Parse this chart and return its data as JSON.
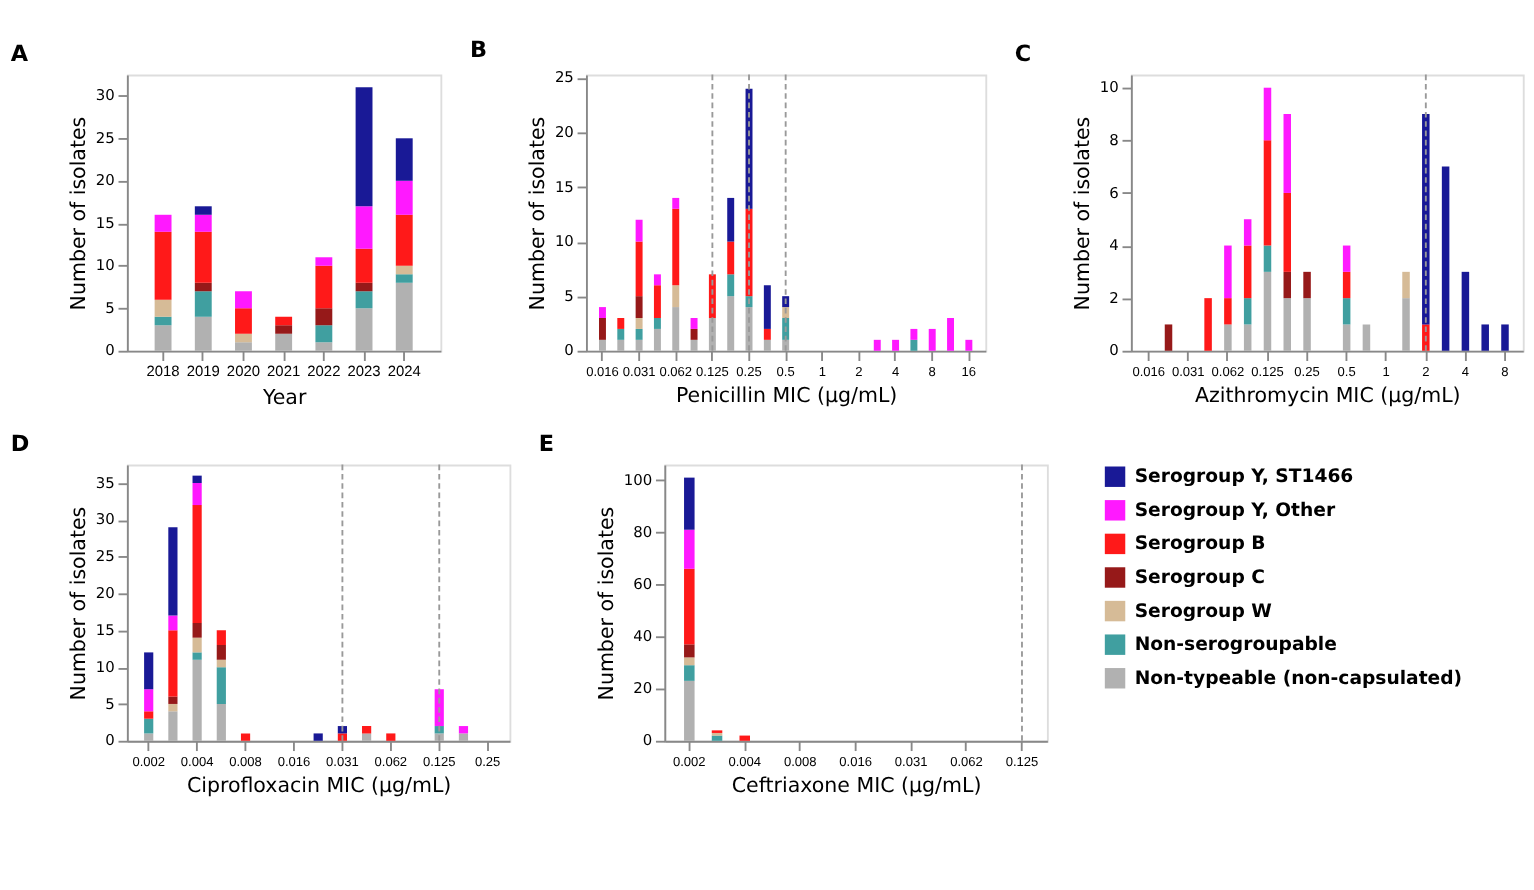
{
  "chart_data": [
    {
      "type": "bar",
      "title": "A",
      "xlabel": "Year",
      "ylabel": "Number of isolates",
      "stacked": true,
      "categories": [
        "2018",
        "2019",
        "2020",
        "2021",
        "2022",
        "2023",
        "2024"
      ],
      "ylim": [
        0,
        32.5
      ],
      "yticks": [
        0,
        5,
        10,
        15,
        20,
        25,
        30
      ],
      "series": [
        {
          "color": "#a9a9a9",
          "values": [
            3,
            4,
            1,
            2,
            1,
            5,
            8
          ]
        },
        {
          "color": "#2b9596",
          "values": [
            1,
            3,
            null,
            null,
            2,
            2,
            1
          ]
        },
        {
          "color": "#d2b48c",
          "values": [
            2,
            null,
            1,
            null,
            null,
            null,
            1
          ]
        },
        {
          "color": "#8b0000",
          "values": [
            null,
            1,
            null,
            1,
            2,
            1,
            null
          ]
        },
        {
          "color": "#ff0000",
          "values": [
            8,
            6,
            3,
            1,
            5,
            4,
            6
          ]
        },
        {
          "color": "#ff00ff",
          "values": [
            2,
            2,
            2,
            null,
            1,
            5,
            4
          ]
        },
        {
          "color": "#00008b",
          "values": [
            null,
            1,
            null,
            null,
            null,
            14,
            5
          ]
        }
      ]
    },
    {
      "type": "bar",
      "title": "B",
      "xlabel": "Penicillin MIC (µg/mL)",
      "ylabel": "Number of isolates",
      "stacked": true,
      "categories": [
        "0.016",
        null,
        "0.031",
        null,
        "0.062",
        null,
        "0.125",
        null,
        "0.25",
        null,
        "0.5",
        null,
        "1",
        null,
        "2",
        null,
        "4",
        null,
        "8",
        null,
        "16"
      ],
      "ylim": [
        0,
        25.3
      ],
      "yticks": [
        0,
        5,
        10,
        15,
        20,
        25
      ],
      "ref_lines": [
        {
          "axis": "x",
          "value": "0.125",
          "color": "#999999",
          "line_style": "dashed"
        },
        {
          "axis": "x",
          "value": "0.25",
          "color": "#999999",
          "line_style": "dashed"
        },
        {
          "axis": "x",
          "value": "0.5",
          "color": "#999999",
          "line_style": "dashed"
        }
      ],
      "series": [
        {
          "color": "#a9a9a9",
          "values": [
            1,
            1,
            1,
            2,
            4,
            1,
            3,
            5,
            4,
            1,
            1,
            null,
            null,
            null,
            null,
            null,
            null,
            null,
            null,
            null,
            null
          ]
        },
        {
          "color": "#2b9596",
          "values": [
            null,
            1,
            1,
            1,
            null,
            null,
            null,
            2,
            1,
            null,
            2,
            null,
            null,
            null,
            null,
            null,
            null,
            1,
            null,
            null,
            null
          ]
        },
        {
          "color": "#d2b48c",
          "values": [
            null,
            null,
            1,
            null,
            2,
            null,
            null,
            null,
            null,
            null,
            1,
            null,
            null,
            null,
            null,
            null,
            null,
            null,
            null,
            null,
            null
          ]
        },
        {
          "color": "#8b0000",
          "values": [
            2,
            null,
            2,
            null,
            null,
            1,
            null,
            null,
            null,
            null,
            null,
            null,
            null,
            null,
            null,
            null,
            null,
            null,
            null,
            null,
            null
          ]
        },
        {
          "color": "#ff0000",
          "values": [
            null,
            1,
            5,
            3,
            7,
            null,
            4,
            3,
            8,
            1,
            null,
            null,
            null,
            null,
            null,
            null,
            null,
            null,
            null,
            null,
            null
          ]
        },
        {
          "color": "#ff00ff",
          "values": [
            1,
            null,
            2,
            1,
            1,
            1,
            null,
            null,
            null,
            null,
            null,
            null,
            null,
            null,
            null,
            1,
            1,
            1,
            2,
            3,
            1
          ]
        },
        {
          "color": "#00008b",
          "values": [
            null,
            null,
            null,
            null,
            null,
            null,
            null,
            4,
            11,
            4,
            1,
            null,
            null,
            null,
            null,
            null,
            null,
            null,
            null,
            null,
            null
          ]
        }
      ]
    },
    {
      "type": "bar",
      "title": "C",
      "xlabel": "Azithromycin MIC (µg/mL)",
      "ylabel": "Number of isolates",
      "stacked": true,
      "categories": [
        "0.016",
        null,
        "0.031",
        null,
        "0.062",
        null,
        "0.125",
        null,
        "0.25",
        null,
        "0.5",
        null,
        "1",
        null,
        "2",
        null,
        "4",
        null,
        "8"
      ],
      "ylim": [
        0,
        10.5
      ],
      "yticks": [
        0,
        2,
        4,
        6,
        8,
        10
      ],
      "ref_lines": [
        {
          "axis": "x",
          "value": "2",
          "color": "#999999",
          "line_style": "dashed"
        }
      ],
      "series": [
        {
          "color": "#a9a9a9",
          "values": [
            null,
            null,
            null,
            null,
            1,
            1,
            3,
            2,
            2,
            null,
            1,
            1,
            null,
            2,
            null,
            null,
            null,
            null,
            null
          ]
        },
        {
          "color": "#2b9596",
          "values": [
            null,
            null,
            null,
            null,
            null,
            1,
            1,
            null,
            null,
            null,
            1,
            null,
            null,
            null,
            null,
            null,
            null,
            null,
            null
          ]
        },
        {
          "color": "#d2b48c",
          "values": [
            null,
            null,
            null,
            null,
            null,
            null,
            null,
            null,
            null,
            null,
            null,
            null,
            null,
            1,
            null,
            null,
            null,
            null,
            null
          ]
        },
        {
          "color": "#8b0000",
          "values": [
            null,
            1,
            null,
            null,
            null,
            null,
            null,
            1,
            1,
            null,
            null,
            null,
            null,
            null,
            null,
            null,
            null,
            null,
            null
          ]
        },
        {
          "color": "#ff0000",
          "values": [
            null,
            null,
            null,
            2,
            1,
            2,
            4,
            3,
            null,
            null,
            1,
            null,
            null,
            null,
            1,
            null,
            null,
            null,
            null
          ]
        },
        {
          "color": "#ff00ff",
          "values": [
            null,
            null,
            null,
            null,
            2,
            1,
            2,
            3,
            null,
            null,
            1,
            null,
            null,
            null,
            null,
            null,
            null,
            null,
            null
          ]
        },
        {
          "color": "#00008b",
          "values": [
            null,
            null,
            null,
            null,
            null,
            null,
            null,
            null,
            null,
            null,
            null,
            null,
            null,
            null,
            8,
            7,
            3,
            1,
            1
          ]
        }
      ]
    },
    {
      "type": "bar",
      "title": "D",
      "xlabel": "Ciprofloxacin MIC (µg/mL)",
      "ylabel": "Number of isolates",
      "stacked": true,
      "categories": [
        "0.002",
        null,
        "0.004",
        null,
        "0.008",
        null,
        "0.016",
        null,
        "0.031",
        null,
        "0.062",
        null,
        "0.125",
        null,
        "0.25"
      ],
      "ylim": [
        0,
        37.5
      ],
      "yticks": [
        0,
        5,
        10,
        15,
        20,
        25,
        30,
        35
      ],
      "ref_lines": [
        {
          "axis": "x",
          "value": "0.031",
          "color": "#999999",
          "line_style": "dashed"
        },
        {
          "axis": "x",
          "value": "0.125",
          "color": "#999999",
          "line_style": "dashed"
        }
      ],
      "series": [
        {
          "color": "#a9a9a9",
          "values": [
            1,
            4,
            11,
            5,
            null,
            null,
            null,
            null,
            null,
            1,
            null,
            null,
            1,
            1,
            null
          ]
        },
        {
          "color": "#2b9596",
          "values": [
            2,
            null,
            1,
            5,
            null,
            null,
            null,
            null,
            null,
            null,
            null,
            null,
            1,
            null,
            null
          ]
        },
        {
          "color": "#d2b48c",
          "values": [
            null,
            1,
            2,
            1,
            null,
            null,
            null,
            null,
            null,
            null,
            null,
            null,
            null,
            null,
            null
          ]
        },
        {
          "color": "#8b0000",
          "values": [
            null,
            1,
            2,
            2,
            null,
            null,
            null,
            null,
            null,
            null,
            null,
            null,
            null,
            null,
            null
          ]
        },
        {
          "color": "#ff0000",
          "values": [
            1,
            9,
            16,
            2,
            1,
            null,
            null,
            null,
            1,
            1,
            1,
            null,
            null,
            null,
            null
          ]
        },
        {
          "color": "#ff00ff",
          "values": [
            3,
            2,
            3,
            null,
            null,
            null,
            null,
            null,
            null,
            null,
            null,
            null,
            5,
            1,
            null
          ]
        },
        {
          "color": "#00008b",
          "values": [
            5,
            12,
            1,
            null,
            null,
            null,
            null,
            1,
            1,
            null,
            null,
            null,
            null,
            null,
            null
          ]
        }
      ]
    },
    {
      "type": "bar",
      "title": "E",
      "xlabel": "Ceftriaxone MIC (µg/mL)",
      "ylabel": "Number of isolates",
      "stacked": true,
      "legend": "right",
      "categories": [
        "0.002",
        null,
        "0.004",
        null,
        "0.008",
        null,
        "0.016",
        null,
        "0.031",
        null,
        "0.062",
        null,
        "0.125"
      ],
      "ylim": [
        0,
        106
      ],
      "yticks": [
        0,
        20,
        40,
        60,
        80,
        100
      ],
      "ref_lines": [
        {
          "axis": "x",
          "value": "0.125",
          "color": "#999999",
          "line_style": "dashed"
        }
      ],
      "series": [
        {
          "name": "Non-typeable (non-capsulated)",
          "color": "#a9a9a9",
          "values": [
            23,
            null,
            null,
            null,
            null,
            null,
            null,
            null,
            null,
            null,
            null,
            null,
            null
          ]
        },
        {
          "name": "Non-serogroupable",
          "color": "#2b9596",
          "values": [
            6,
            2,
            null,
            null,
            null,
            null,
            null,
            null,
            null,
            null,
            null,
            null,
            null
          ]
        },
        {
          "name": "Serogroup W",
          "color": "#d2b48c",
          "values": [
            3,
            1,
            null,
            null,
            null,
            null,
            null,
            null,
            null,
            null,
            null,
            null,
            null
          ]
        },
        {
          "name": "Serogroup C",
          "color": "#8b0000",
          "values": [
            5,
            null,
            null,
            null,
            null,
            null,
            null,
            null,
            null,
            null,
            null,
            null,
            null
          ]
        },
        {
          "name": "Serogroup B",
          "color": "#ff0000",
          "values": [
            29,
            1,
            2,
            null,
            null,
            null,
            null,
            null,
            null,
            null,
            null,
            null,
            null
          ]
        },
        {
          "name": "Serogroup Y, Other",
          "color": "#ff00ff",
          "values": [
            15,
            null,
            null,
            null,
            null,
            null,
            null,
            null,
            null,
            null,
            null,
            null,
            null
          ]
        },
        {
          "name": "Serogroup Y, ST1466",
          "color": "#00008b",
          "values": [
            20,
            null,
            null,
            null,
            null,
            null,
            null,
            null,
            null,
            null,
            null,
            null,
            null
          ]
        }
      ]
    }
  ]
}
